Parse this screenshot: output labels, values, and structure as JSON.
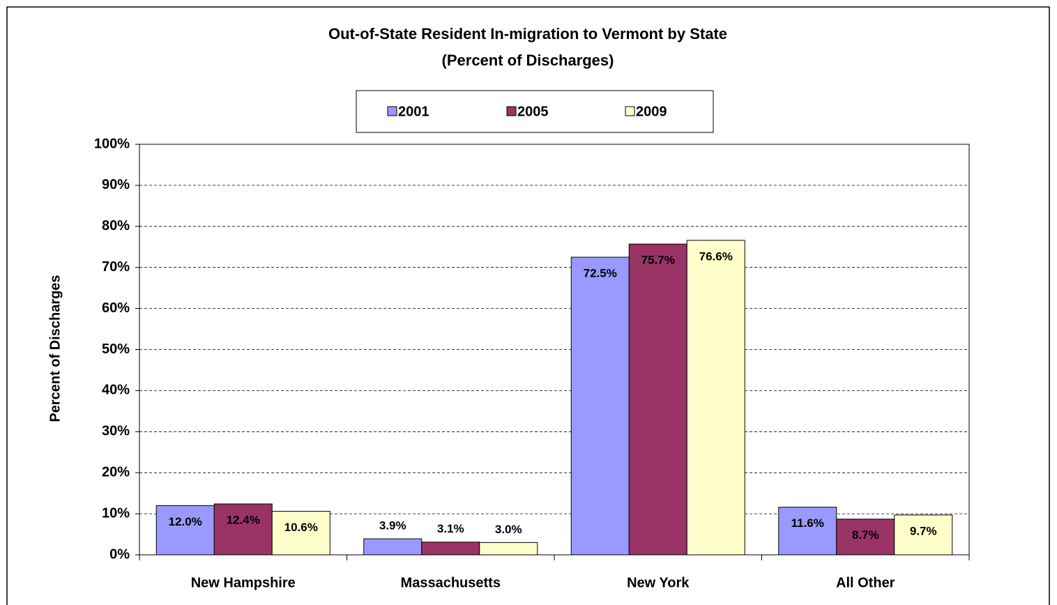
{
  "chart_data": {
    "type": "bar",
    "title": "Out-of-State Resident In-migration to Vermont by State",
    "subtitle": "(Percent of Discharges)",
    "y_label": "Percent of Discharges",
    "categories": [
      "New Hampshire",
      "Massachusetts",
      "New York",
      "All Other"
    ],
    "series": [
      {
        "name": "2001",
        "color": "#9999ff",
        "values": [
          12.0,
          3.9,
          72.5,
          11.6
        ],
        "value_labels": [
          "12.0%",
          "3.9%",
          "72.5%",
          "11.6%"
        ]
      },
      {
        "name": "2005",
        "color": "#993366",
        "values": [
          12.4,
          3.1,
          75.7,
          8.7
        ],
        "value_labels": [
          "12.4%",
          "3.1%",
          "75.7%",
          "8.7%"
        ]
      },
      {
        "name": "2009",
        "color": "#ffffcc",
        "values": [
          10.6,
          3.0,
          76.6,
          9.7
        ],
        "value_labels": [
          "10.6%",
          "3.0%",
          "76.6%",
          "9.7%"
        ]
      }
    ],
    "ylim": [
      0,
      100
    ],
    "yticks": [
      {
        "value": 0,
        "label": "0%"
      },
      {
        "value": 10,
        "label": "10%"
      },
      {
        "value": 20,
        "label": "20%"
      },
      {
        "value": 30,
        "label": "30%"
      },
      {
        "value": 40,
        "label": "40%"
      },
      {
        "value": 50,
        "label": "50%"
      },
      {
        "value": 60,
        "label": "60%"
      },
      {
        "value": 70,
        "label": "70%"
      },
      {
        "value": 80,
        "label": "80%"
      },
      {
        "value": 90,
        "label": "90%"
      },
      {
        "value": 100,
        "label": "100%"
      }
    ],
    "grid": true,
    "legend": "top"
  }
}
